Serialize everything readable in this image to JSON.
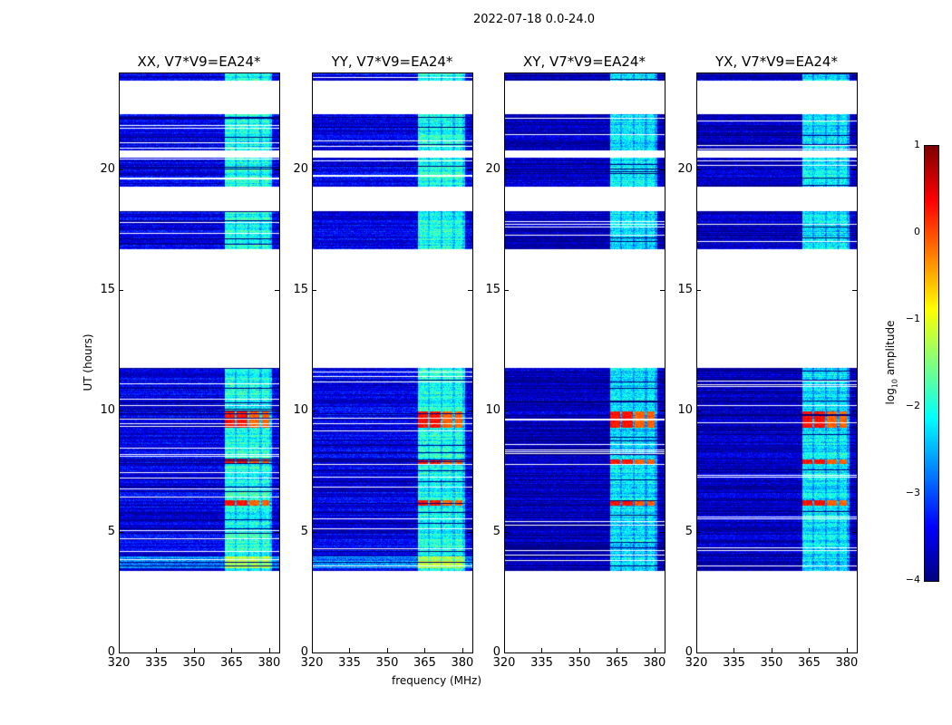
{
  "chart_data": {
    "type": "heatmap",
    "title": "2022-07-18 0.0-24.0",
    "xlabel": "frequency (MHz)",
    "ylabel": "UT (hours)",
    "xlim": [
      320,
      384
    ],
    "ylim": [
      0,
      24
    ],
    "xticks": [
      "320",
      "335",
      "350",
      "365",
      "380"
    ],
    "xtick_values": [
      320,
      335,
      350,
      365,
      380
    ],
    "yticks": [
      "0",
      "5",
      "10",
      "15",
      "20"
    ],
    "ytick_values": [
      0,
      5,
      10,
      15,
      20
    ],
    "panels": [
      {
        "title": "XX, V7*V9=EA24*"
      },
      {
        "title": "YY, V7*V9=EA24*"
      },
      {
        "title": "XY, V7*V9=EA24*"
      },
      {
        "title": "YX, V7*V9=EA24*"
      }
    ],
    "data_time_ranges_hours": [
      [
        3.4,
        11.8
      ],
      [
        16.7,
        18.3
      ],
      [
        19.3,
        20.5
      ],
      [
        20.8,
        22.3
      ],
      [
        23.7,
        24.0
      ]
    ],
    "rfi_freq_blocks_mhz": [
      [
        362,
        366
      ],
      [
        367,
        371
      ],
      [
        372,
        376
      ],
      [
        377,
        380
      ]
    ],
    "strong_rfi_hours": [
      [
        9.3,
        10.0
      ],
      [
        7.8,
        8.0
      ],
      [
        6.1,
        6.3
      ]
    ],
    "background_log10_amplitude": -3.5,
    "colorbar": {
      "label": "log10 amplitude",
      "range": [
        -4,
        1
      ],
      "ticks": [
        "1",
        "0",
        "−1",
        "−2",
        "−3",
        "−4"
      ],
      "tick_values": [
        1,
        0,
        -1,
        -2,
        -3,
        -4
      ],
      "colormap": "jet"
    }
  }
}
